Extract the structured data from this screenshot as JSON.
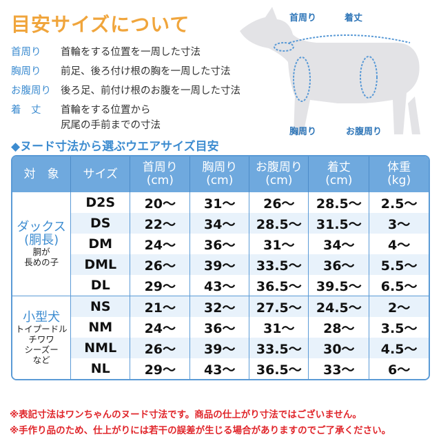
{
  "title": "目安サイズについて",
  "definitions": [
    {
      "term": "首周り",
      "text": "首輪をする位置を一周した寸法"
    },
    {
      "term": "胸周り",
      "text": "前足、後ろ付け根の胸を一周した寸法"
    },
    {
      "term": "お腹周り",
      "text": "後ろ足、前付け根のお腹を一周した寸法"
    },
    {
      "term": "着　丈",
      "text": "首輪をする位置から",
      "text2": "尻尾の手前までの寸法"
    }
  ],
  "diagram_labels": {
    "neck": "首周り",
    "length": "着丈",
    "chest": "胸周り",
    "belly": "お腹周り"
  },
  "subtitle": "◆ヌード寸法から選ぶウエアサイズ目安",
  "colors": {
    "title": "#f0a53c",
    "accent": "#3d8cd0",
    "header": "#6fa9de",
    "note": "#e0262b"
  },
  "table": {
    "headers": [
      {
        "l1": "対　象"
      },
      {
        "l1": "サイズ"
      },
      {
        "l1": "首周り",
        "l2": "(cm)"
      },
      {
        "l1": "胸周り",
        "l2": "(cm)"
      },
      {
        "l1": "お腹周り",
        "l2": "(cm)"
      },
      {
        "l1": "着丈",
        "l2": "(cm)"
      },
      {
        "l1": "体重",
        "l2": "(kg)"
      }
    ],
    "groups": [
      {
        "name": "ダックス",
        "name2": "(胴長)",
        "desc1": "胴が",
        "desc2": "長めの子"
      },
      {
        "name": "小型犬",
        "desc1": "トイプードル",
        "desc2": "チワワ",
        "desc3": "シーズー",
        "desc4": "など"
      }
    ],
    "rows": [
      [
        "D2S",
        "20〜",
        "31〜",
        "26〜",
        "28.5〜",
        "2.5〜"
      ],
      [
        "DS",
        "22〜",
        "34〜",
        "28.5〜",
        "31.5〜",
        "3〜"
      ],
      [
        "DM",
        "24〜",
        "36〜",
        "31〜",
        "34〜",
        "4〜"
      ],
      [
        "DML",
        "26〜",
        "39〜",
        "33.5〜",
        "36〜",
        "5.5〜"
      ],
      [
        "DL",
        "29〜",
        "43〜",
        "36.5〜",
        "39.5〜",
        "6.5〜"
      ],
      [
        "NS",
        "21〜",
        "32〜",
        "27.5〜",
        "24.5〜",
        "2〜"
      ],
      [
        "NM",
        "24〜",
        "36〜",
        "31〜",
        "28〜",
        "3.5〜"
      ],
      [
        "NML",
        "26〜",
        "39〜",
        "33.5〜",
        "30〜",
        "4.5〜"
      ],
      [
        "NL",
        "29〜",
        "43〜",
        "36.5〜",
        "33〜",
        "6〜"
      ]
    ]
  },
  "notes": [
    "※表記寸法はワンちゃんのヌード寸法です。商品の仕上がり寸法ではございません。",
    "※手作り品のため、仕上がりには若干の誤差が生じる場合がありますのでご了承ください。"
  ]
}
